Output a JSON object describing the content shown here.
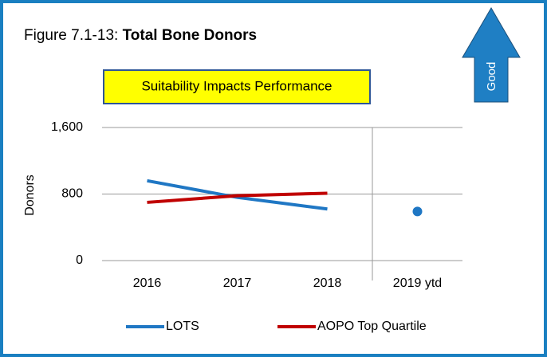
{
  "chart_data": {
    "type": "line",
    "title_prefix": "Figure  7.1-13: ",
    "title": "Total Bone Donors",
    "banner": "Suitability Impacts Performance",
    "arrow_label": "Good",
    "ylabel": "Donors",
    "categories": [
      "2016",
      "2017",
      "2018",
      "2019 ytd"
    ],
    "separator_index": 3,
    "series": [
      {
        "name": "LOTS",
        "color": "#1f77c4",
        "values": [
          960,
          760,
          620,
          590
        ]
      },
      {
        "name": "AOPO Top Quartile",
        "color": "#c00000",
        "values": [
          700,
          780,
          810,
          null
        ]
      }
    ],
    "ylim": [
      0,
      1600
    ],
    "yticks": [
      0,
      800,
      {
        "value": 1600,
        "label": "1,600"
      }
    ],
    "grid": true
  }
}
